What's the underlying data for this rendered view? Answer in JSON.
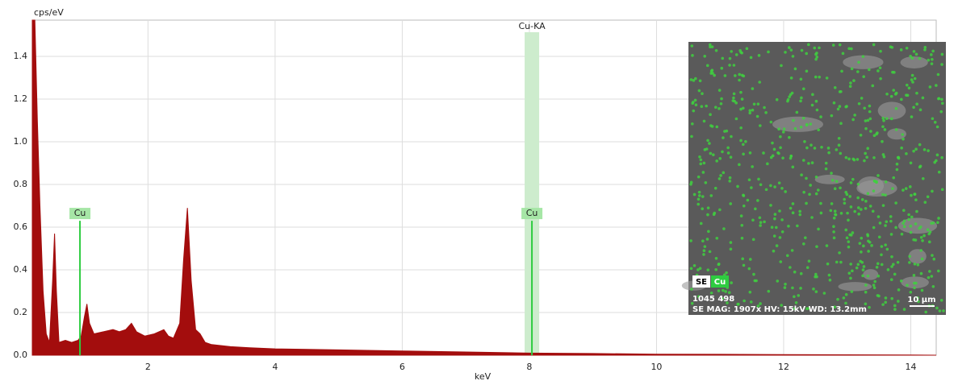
{
  "chart_data": {
    "type": "area",
    "y_label": "cps/eV",
    "x_label": "keV",
    "x": [
      0.18,
      0.2,
      0.22,
      0.26,
      0.3,
      0.35,
      0.4,
      0.45,
      0.5,
      0.53,
      0.56,
      0.6,
      0.7,
      0.8,
      0.9,
      0.95,
      1.0,
      1.04,
      1.08,
      1.15,
      1.3,
      1.45,
      1.55,
      1.65,
      1.74,
      1.82,
      1.95,
      2.1,
      2.25,
      2.32,
      2.4,
      2.5,
      2.56,
      2.62,
      2.68,
      2.75,
      2.82,
      2.9,
      3.0,
      3.3,
      3.6,
      4.0,
      5.0,
      6.0,
      7.0,
      8.0,
      9.0,
      10.0,
      11.0,
      12.0,
      13.0,
      14.0,
      14.4
    ],
    "values": [
      1.57,
      1.57,
      1.57,
      1.1,
      0.7,
      0.3,
      0.1,
      0.06,
      0.35,
      0.57,
      0.3,
      0.06,
      0.07,
      0.06,
      0.07,
      0.09,
      0.18,
      0.24,
      0.15,
      0.1,
      0.11,
      0.12,
      0.11,
      0.12,
      0.15,
      0.11,
      0.09,
      0.1,
      0.12,
      0.09,
      0.08,
      0.15,
      0.45,
      0.69,
      0.35,
      0.12,
      0.1,
      0.06,
      0.05,
      0.04,
      0.035,
      0.03,
      0.025,
      0.02,
      0.015,
      0.01,
      0.008,
      0.005,
      0.004,
      0.003,
      0.002,
      0.001,
      0
    ],
    "color": "#a30d0d",
    "xlim": [
      0.18,
      14.4
    ],
    "ylim": [
      0,
      1.57
    ],
    "xticks": [
      2,
      4,
      6,
      8,
      10,
      12,
      14
    ],
    "yticks": [
      {
        "value": 0,
        "label": "0.0"
      },
      0.2,
      0.4,
      0.6,
      0.8,
      {
        "value": 1,
        "label": "1.0"
      },
      1.2,
      1.4
    ],
    "grid": true,
    "element_lines": [
      {
        "label": "Cu",
        "x": 0.93,
        "value": 0.63
      },
      {
        "label": "Cu",
        "x": 8.04,
        "value": 0.63
      }
    ],
    "element_color": "#2ecc40",
    "highlight": {
      "label": "Cu-KA",
      "x": 8.04
    },
    "inset": {
      "tag_se": "SE",
      "tag_cu": "Cu",
      "id": "1045 498",
      "info": "SE  MAG: 1907x  HV: 15kV  WD: 13.2mm",
      "scale": "10 µm"
    }
  }
}
